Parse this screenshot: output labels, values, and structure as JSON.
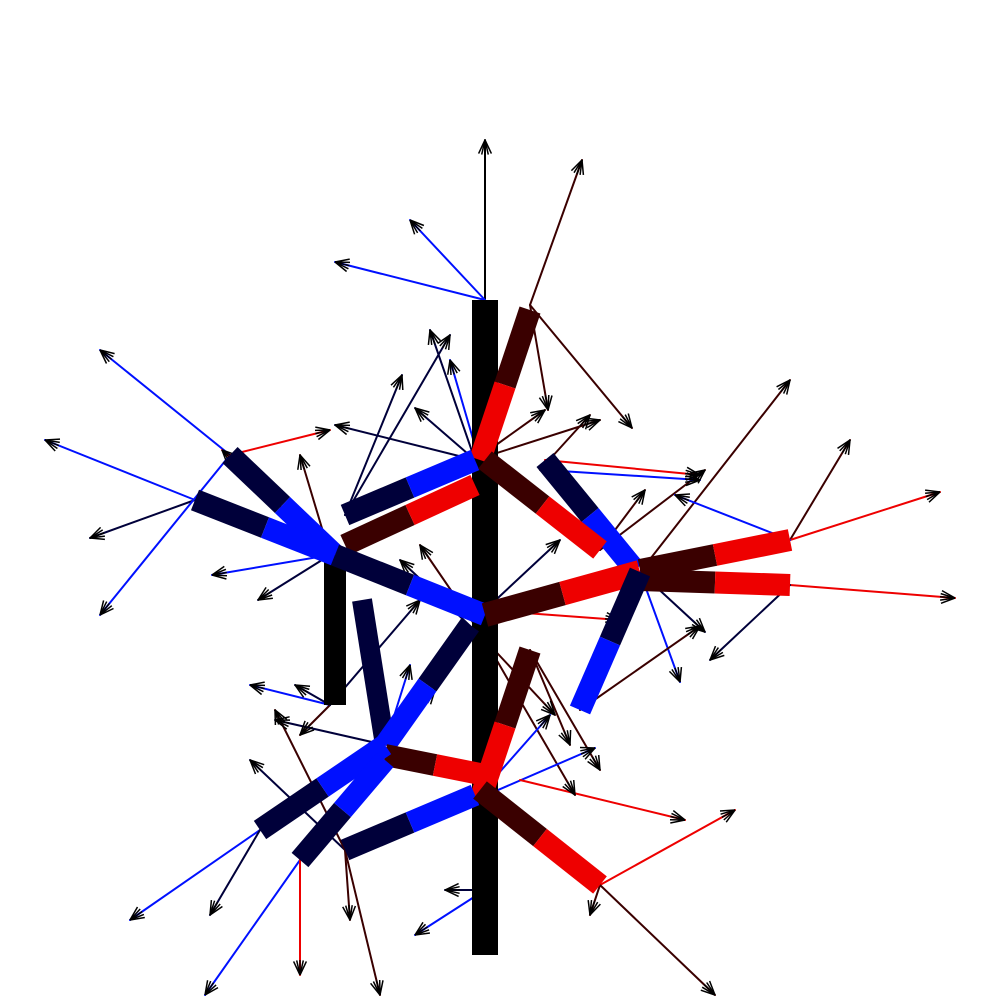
{
  "canvas": {
    "background": "#ffffff"
  },
  "palette": {
    "black": "#000000",
    "blue": "#0010ff",
    "dark_blue": "#00003a",
    "red": "#ee0000",
    "dark_red": "#3a0000"
  }
}
